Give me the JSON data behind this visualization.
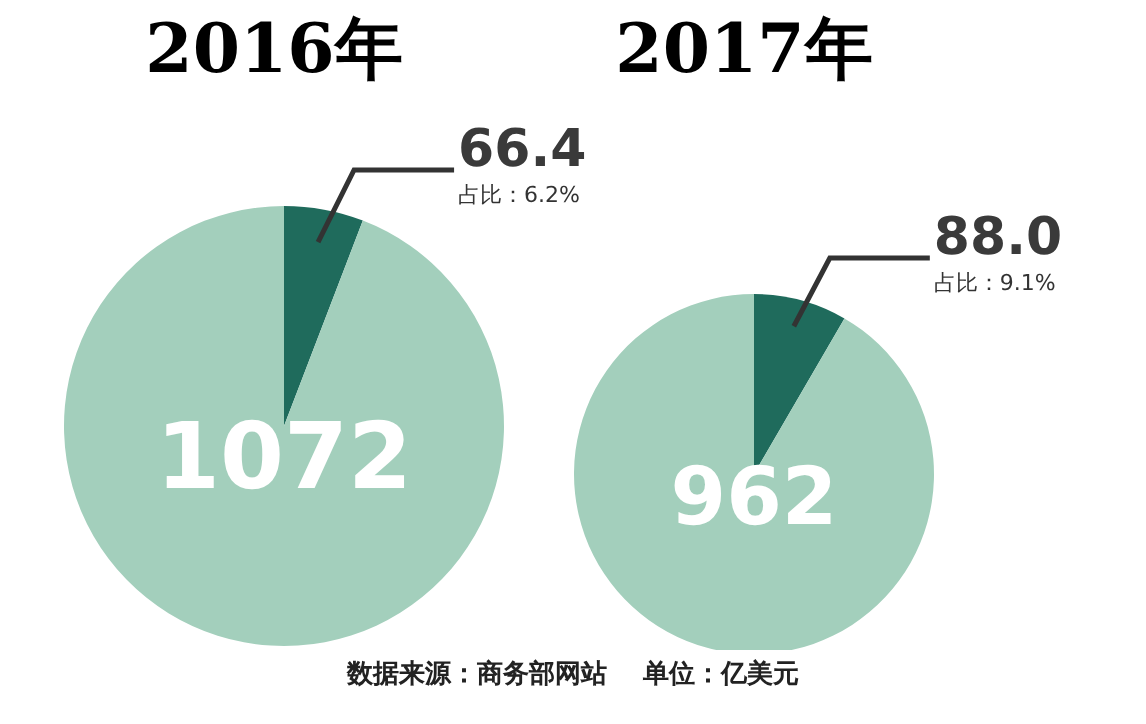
{
  "chart_data": [
    {
      "type": "pie",
      "title": "2016年",
      "categories": [
        null,
        null
      ],
      "values": [
        66.4,
        1072
      ],
      "colors": [
        "#1f6b5c",
        "#a3cfbc"
      ],
      "value_labels": [
        "66.4",
        "1072"
      ],
      "annotations": [
        "占比：6.2%",
        "数据来源：商务部网站    单位：亿美元"
      ]
    },
    {
      "type": "pie",
      "title": "2017年",
      "categories": [
        null,
        null
      ],
      "values": [
        88.0,
        962
      ],
      "colors": [
        "#1f6b5c",
        "#a3cfbc"
      ],
      "value_labels": [
        "88.0",
        "962"
      ],
      "annotations": [
        "占比：9.1%"
      ]
    }
  ]
}
